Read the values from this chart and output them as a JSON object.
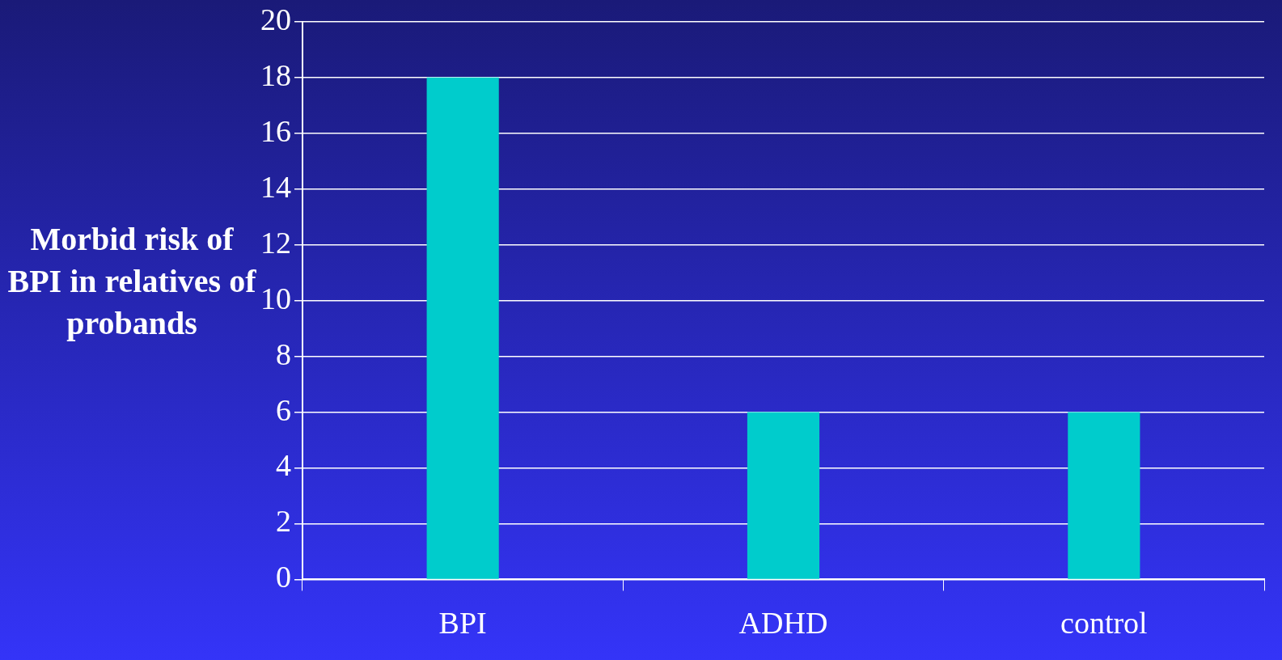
{
  "chart_data": {
    "type": "bar",
    "ylabel": "Morbid risk of BPI in relatives of probands",
    "categories": [
      "BPI",
      "ADHD",
      "control"
    ],
    "values": [
      18,
      6,
      6
    ],
    "color": "#00cccc",
    "ylim": [
      0,
      20
    ],
    "yticks": [
      0,
      2,
      4,
      6,
      8,
      10,
      12,
      14,
      16,
      18,
      20
    ],
    "grid": "y",
    "legend": false
  }
}
